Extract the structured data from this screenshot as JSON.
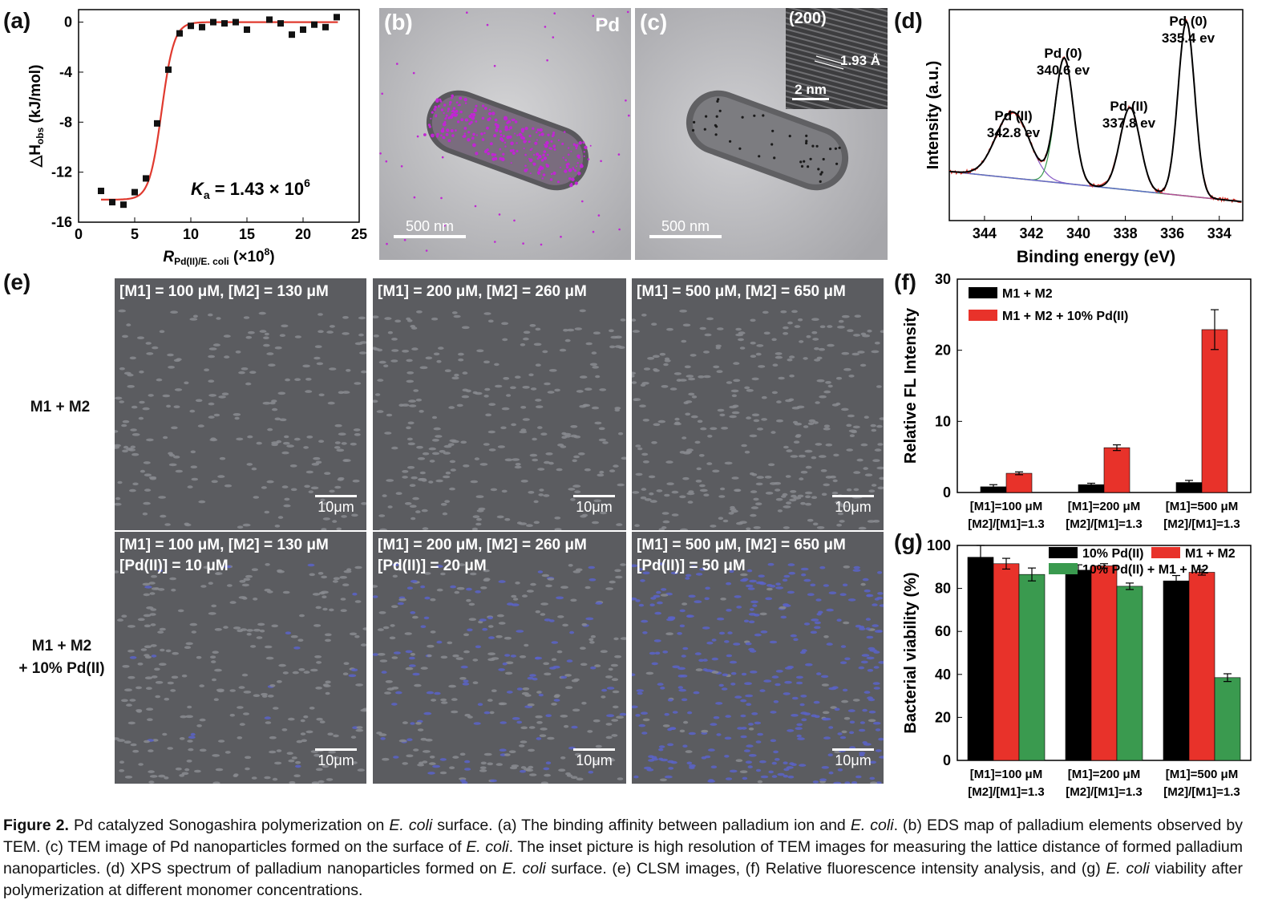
{
  "panel_labels": {
    "a": "(a)",
    "b": "(b)",
    "c": "(c)",
    "d": "(d)",
    "e": "(e)",
    "f": "(f)",
    "g": "(g)"
  },
  "panel_b": {
    "element": "Pd",
    "scale_label": "500 nm"
  },
  "panel_c": {
    "scale_label": "500 nm",
    "inset_plane": "(200)",
    "inset_spacing": "1.93 Å",
    "inset_scale": "2 nm"
  },
  "panel_e": {
    "row_labels": [
      "M1 + M2",
      "M1 + M2\n+ 10% Pd(II)"
    ],
    "images": [
      {
        "caption": "[M1] = 100 μM, [M2] = 130 μM",
        "scale": "10μm"
      },
      {
        "caption": "[M1] = 200 μM, [M2] = 260 μM",
        "scale": "10μm"
      },
      {
        "caption": "[M1] = 500 μM, [M2] = 650 μM",
        "scale": "10μm"
      },
      {
        "caption": "[M1] = 100 μM, [M2] = 130 μM\n[Pd(II)] = 10 μM",
        "scale": "10μm"
      },
      {
        "caption": "[M1] = 200 μM, [M2] = 260 μM\n[Pd(II)] = 20 μM",
        "scale": "10μm"
      },
      {
        "caption": "[M1] = 500 μM, [M2] = 650 μM\n[Pd(II)] = 50 μM",
        "scale": "10μm"
      }
    ]
  },
  "colors": {
    "red": "#e8322a",
    "black": "#000000",
    "green": "#3a9a4f",
    "fit": "#e03a2f"
  },
  "chart_data": [
    {
      "id": "a",
      "type": "scatter",
      "xlabel_main": "R",
      "xlabel_sub": "Pd(II)/E. coli",
      "xlabel_unit": "(×10",
      "xlabel_exp": "8",
      "xlabel_end": ")",
      "ylabel_pre": "△H",
      "ylabel_sub": "obs",
      "ylabel_unit": " (kJ/mol)",
      "annotation_k": "K",
      "annotation_ksub": "a",
      "annotation_val": " = 1.43 × 10",
      "annotation_exp": "6",
      "xlim": [
        0,
        25
      ],
      "ylim": [
        -16,
        1
      ],
      "xticks": [
        "0",
        "5",
        "10",
        "15",
        "20",
        "25"
      ],
      "yticks": [
        "0",
        "-4",
        "-8",
        "-12",
        "-16"
      ],
      "x": [
        2,
        3,
        4,
        5,
        6,
        7,
        8,
        9,
        10,
        11,
        12,
        13,
        14,
        15,
        17,
        18,
        19,
        20,
        21,
        22,
        23
      ],
      "y": [
        -13.5,
        -14.4,
        -14.6,
        -13.6,
        -12.5,
        -8.1,
        -3.8,
        -0.9,
        -0.3,
        -0.4,
        0.0,
        -0.1,
        0.0,
        -0.6,
        0.2,
        -0.1,
        -1.0,
        -0.6,
        -0.2,
        -0.4,
        0.4
      ],
      "fit": {
        "low": -14.2,
        "high": 0.0,
        "mid": 7.4,
        "width": 0.55
      }
    },
    {
      "id": "d",
      "type": "line",
      "xlabel": "Binding energy (eV)",
      "ylabel": "Intensity (a.u.)",
      "xlim": [
        345.5,
        333
      ],
      "xticks": [
        "344",
        "342",
        "340",
        "338",
        "336",
        "334"
      ],
      "peaks": [
        {
          "label1": "Pd (II)",
          "label2": "342.8 ev",
          "center": 342.8
        },
        {
          "label1": "Pd (0)",
          "label2": "340.6 ev",
          "center": 340.6
        },
        {
          "label1": "Pd (II)",
          "label2": "337.8 ev",
          "center": 337.8
        },
        {
          "label1": "Pd (0)",
          "label2": "335.4 ev",
          "center": 335.4
        }
      ]
    },
    {
      "id": "f",
      "type": "bar",
      "ylabel": "Relative FL Intensity",
      "ylim": [
        0,
        30
      ],
      "yticks": [
        "0",
        "10",
        "20",
        "30"
      ],
      "categories": [
        {
          "line1": "[M1]=100 μM",
          "line2": "[M2]/[M1]=1.3"
        },
        {
          "line1": "[M1]=200 μM",
          "line2": "[M2]/[M1]=1.3"
        },
        {
          "line1": "[M1]=500 μM",
          "line2": "[M2]/[M1]=1.3"
        }
      ],
      "series": [
        {
          "name": "M1 + M2",
          "values": [
            0.8,
            1.1,
            1.4
          ],
          "errors": [
            0.3,
            0.2,
            0.3
          ]
        },
        {
          "name": "M1 + M2 + 10% Pd(II)",
          "values": [
            2.7,
            6.3,
            22.9
          ],
          "errors": [
            0.2,
            0.4,
            2.8
          ]
        }
      ]
    },
    {
      "id": "g",
      "type": "bar",
      "ylabel": "Bacterial viability (%)",
      "ylim": [
        0,
        100
      ],
      "yticks": [
        "0",
        "20",
        "40",
        "60",
        "80",
        "100"
      ],
      "categories": [
        {
          "line1": "[M1]=100 μM",
          "line2": "[M2]/[M1]=1.3"
        },
        {
          "line1": "[M1]=200 μM",
          "line2": "[M2]/[M1]=1.3"
        },
        {
          "line1": "[M1]=500 μM",
          "line2": "[M2]/[M1]=1.3"
        }
      ],
      "series": [
        {
          "name": "10% Pd(II)",
          "values": [
            94.5,
            88.5,
            83.5
          ],
          "errors": [
            5.5,
            2.5,
            2.5
          ]
        },
        {
          "name": "M1 + M2",
          "values": [
            91.5,
            90.5,
            87.5
          ],
          "errors": [
            2.5,
            1.0,
            1.3
          ]
        },
        {
          "name": "10% Pd(II) + M1 + M2",
          "values": [
            86.5,
            81.0,
            38.5
          ],
          "errors": [
            3.0,
            1.5,
            1.8
          ]
        }
      ]
    }
  ],
  "figure_caption": {
    "parts": [
      {
        "t": "Figure 2.",
        "b": true
      },
      {
        "t": " Pd catalyzed Sonogashira polymerization on "
      },
      {
        "t": "E. coli",
        "i": true
      },
      {
        "t": " surface. (a) The binding affinity between palladium ion and "
      },
      {
        "t": "E. coli",
        "i": true
      },
      {
        "t": ". (b) EDS map of palladium elements observed by TEM. (c) TEM image of Pd nanoparticles formed on the surface of "
      },
      {
        "t": "E. coli",
        "i": true
      },
      {
        "t": ". The inset picture is high resolution of TEM images for measuring the lattice distance of formed palladium nanoparticles. (d) XPS spectrum of palladium nanoparticles formed on "
      },
      {
        "t": "E. coli",
        "i": true
      },
      {
        "t": " surface. (e) CLSM images, (f) Relative fluorescence intensity analysis, and (g) "
      },
      {
        "t": "E. coli",
        "i": true
      },
      {
        "t": " viability after polymerization at different monomer concentrations."
      }
    ]
  }
}
